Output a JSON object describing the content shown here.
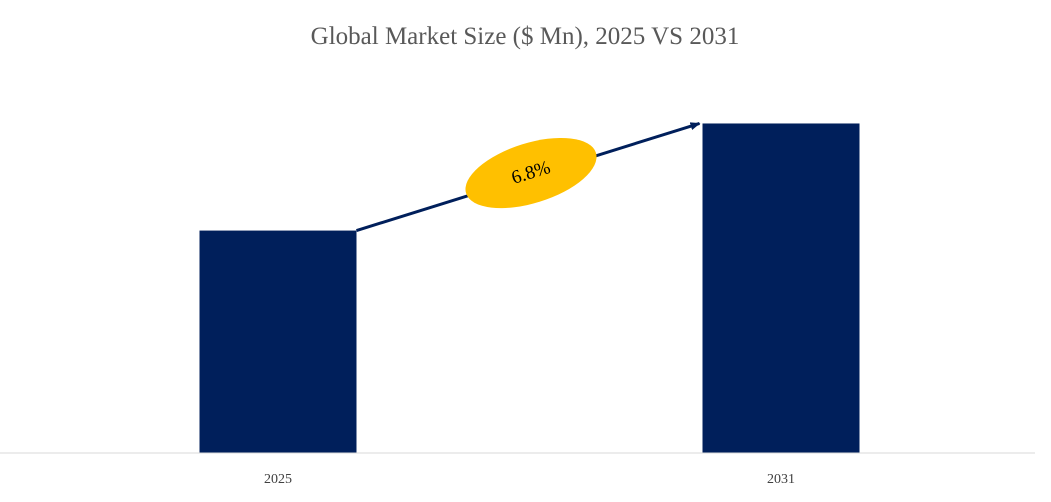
{
  "chart_data": {
    "type": "bar",
    "title": "Global Market Size ($ Mn), 2025 VS 2031",
    "xlabel": "",
    "ylabel": "",
    "categories": [
      "2025",
      "2031"
    ],
    "values": [
      0.675,
      1.0
    ],
    "ylim": [
      0,
      1.05
    ],
    "grid": false,
    "legend": "none",
    "annotation": {
      "label": "6.8%",
      "from_category": "2025",
      "to_category": "2031"
    },
    "colors": {
      "bar": "#001F5B",
      "arrow": "#001F5B",
      "badge": "#FFC000",
      "baseline": "#D9D9D9"
    }
  }
}
